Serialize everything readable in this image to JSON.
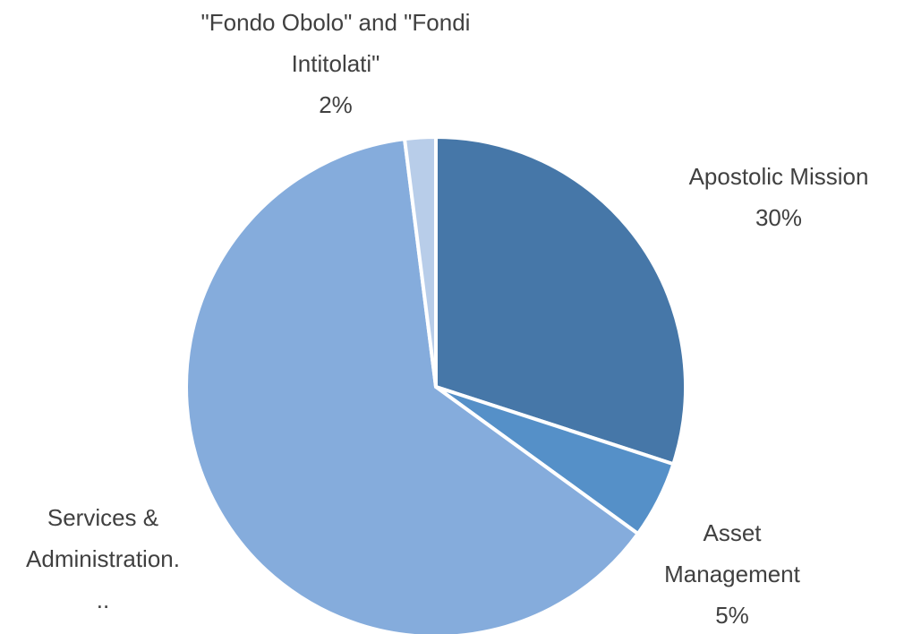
{
  "chart_data": {
    "type": "pie",
    "categories": [
      "Apostolic Mission",
      "Asset Management",
      "Services & Administration...",
      "\"Fondo Obolo\" and \"Fondi Intitolati\""
    ],
    "values": [
      30,
      5,
      63,
      2
    ],
    "value_labels": [
      "30%",
      "5%",
      null,
      "2%"
    ],
    "colors": [
      "#4677a8",
      "#5590c8",
      "#85acdc",
      "#b8cde9"
    ]
  }
}
